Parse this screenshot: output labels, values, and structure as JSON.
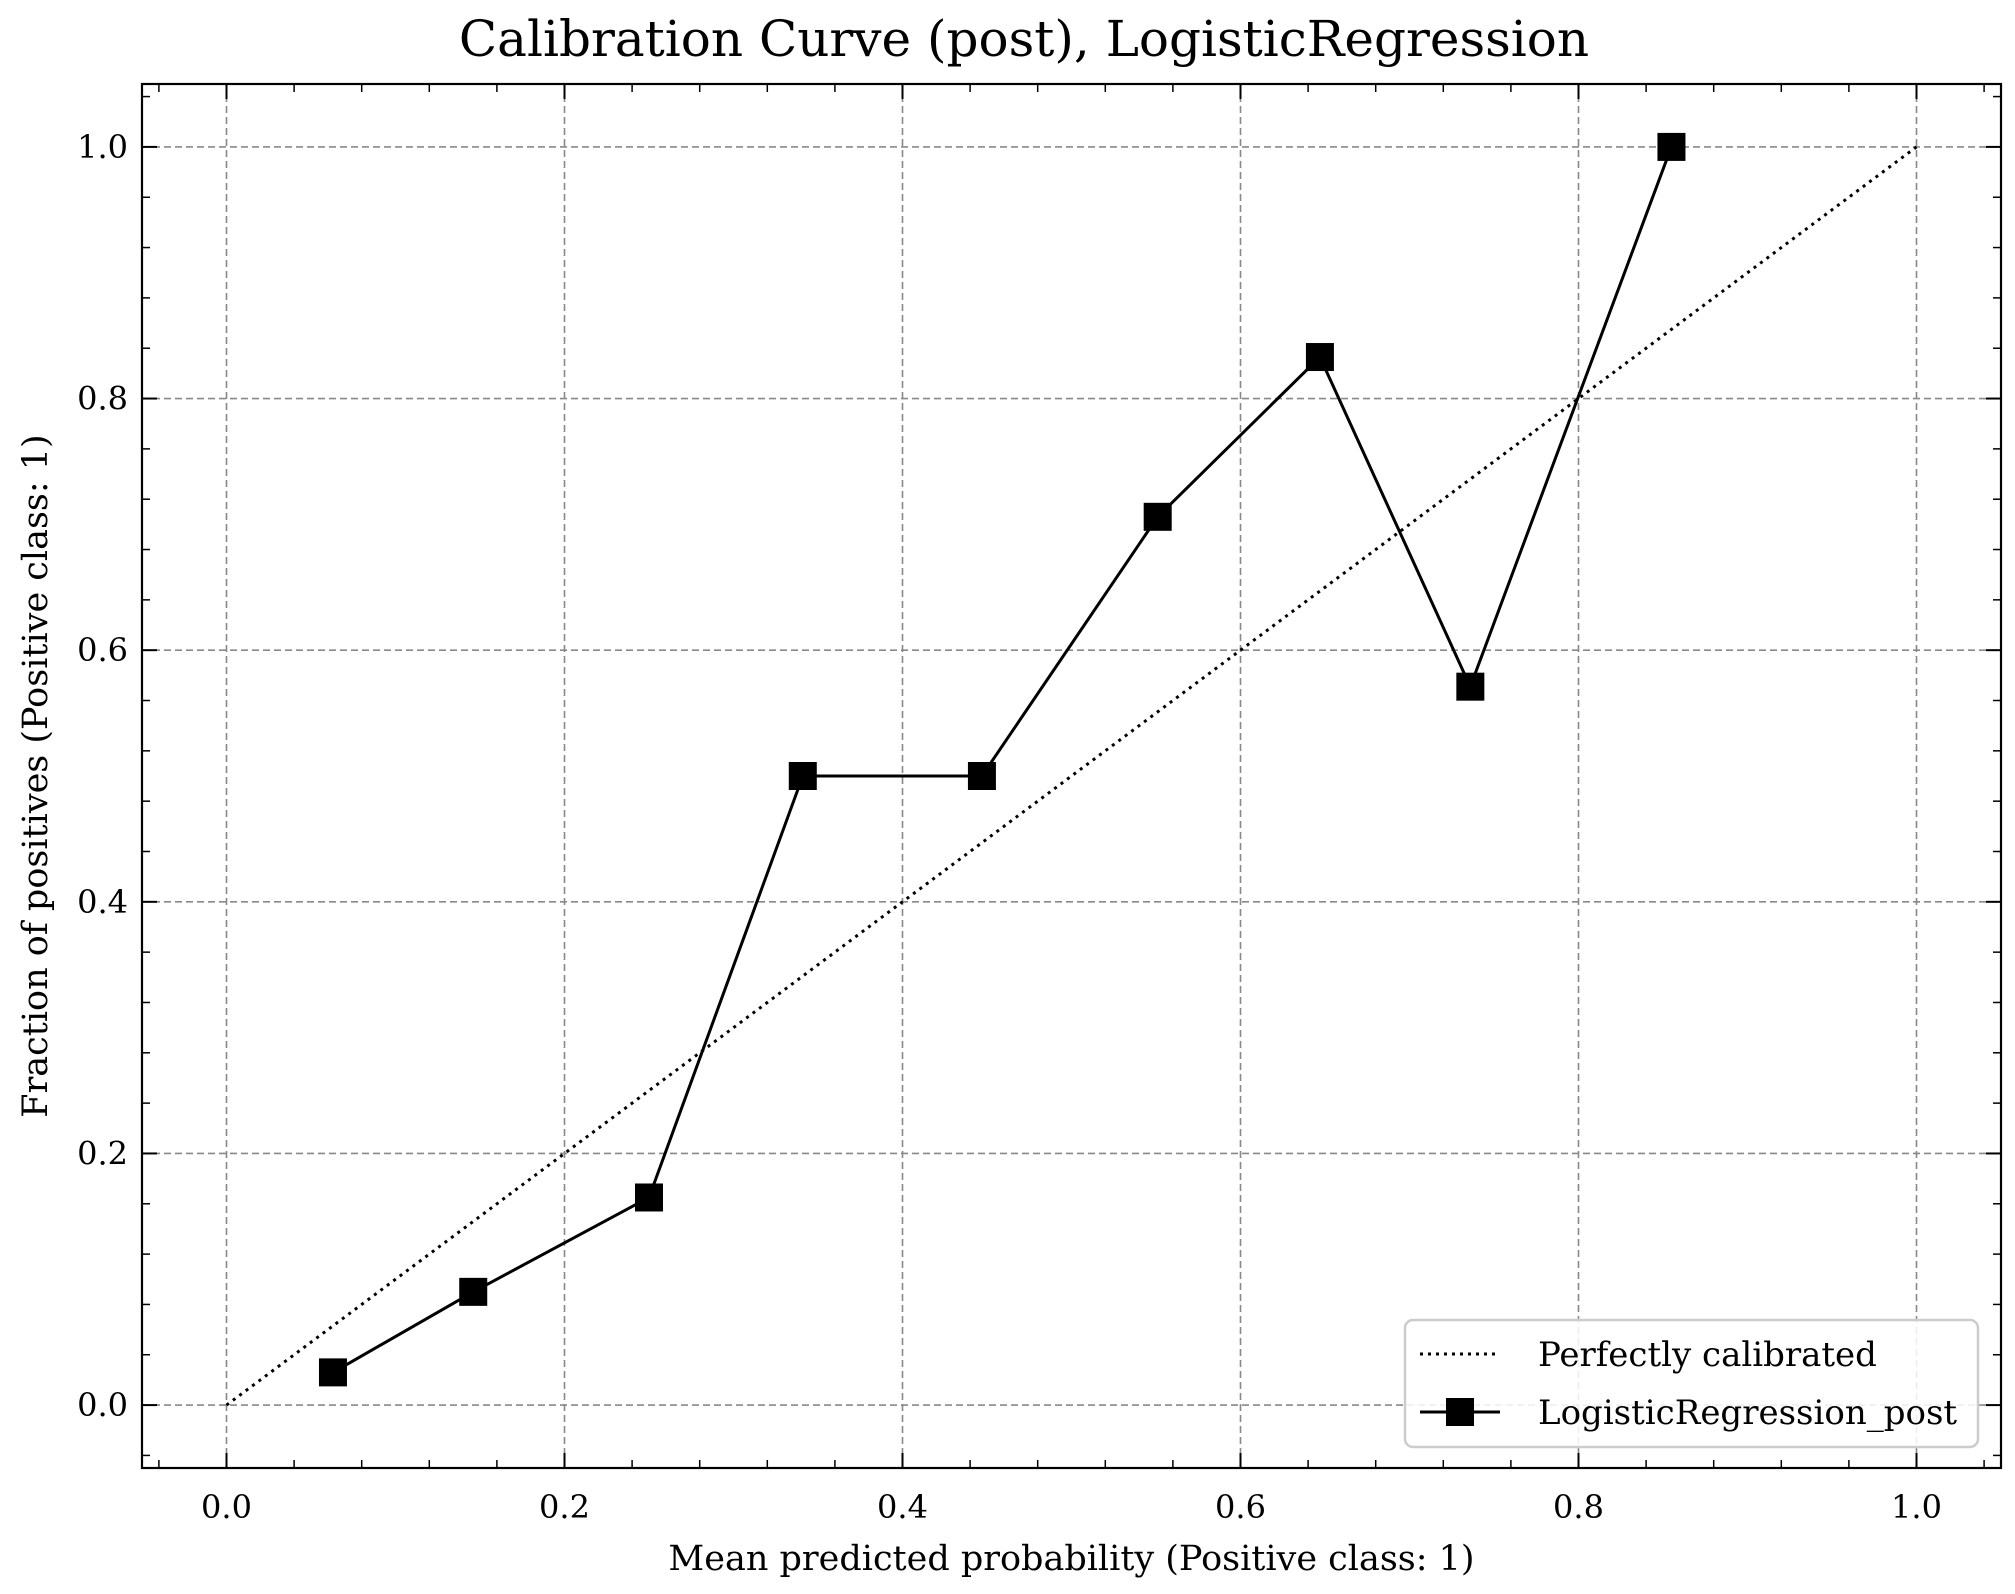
{
  "chart_data": {
    "type": "line",
    "title": "Calibration Curve (post), LogisticRegression",
    "xlabel": "Mean predicted probability (Positive class: 1)",
    "ylabel": "Fraction of positives (Positive class: 1)",
    "xlim": [
      -0.05,
      1.05
    ],
    "ylim": [
      -0.05,
      1.05
    ],
    "xticks": [
      "0.0",
      "0.2",
      "0.4",
      "0.6",
      "0.8",
      "1.0"
    ],
    "yticks": [
      "0.0",
      "0.2",
      "0.4",
      "0.6",
      "0.8",
      "1.0"
    ],
    "grid": true,
    "legend_position": "lower-right",
    "series": [
      {
        "name": "Perfectly calibrated",
        "style": "dotted",
        "color": "#000000",
        "x": [
          0.0,
          1.0
        ],
        "y": [
          0.0,
          1.0
        ]
      },
      {
        "name": "LogisticRegression_post",
        "style": "solid",
        "marker": "square",
        "color": "#000000",
        "x": [
          0.063,
          0.146,
          0.25,
          0.341,
          0.447,
          0.551,
          0.647,
          0.736,
          0.855
        ],
        "y": [
          0.026,
          0.09,
          0.165,
          0.5,
          0.5,
          0.706,
          0.833,
          0.571,
          1.0
        ]
      }
    ]
  }
}
